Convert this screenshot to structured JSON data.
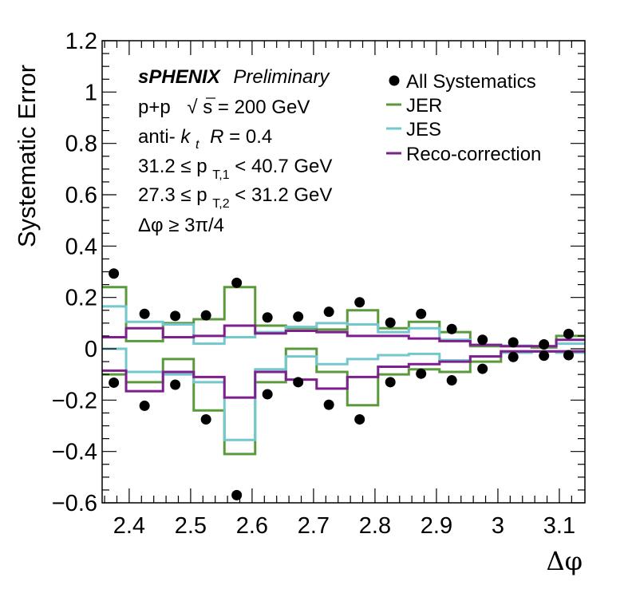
{
  "chart_data": {
    "type": "line",
    "xlabel": "Δφ",
    "ylabel": "Systematic Error",
    "xlim": [
      2.356,
      3.1416
    ],
    "ylim": [
      -0.6,
      1.2
    ],
    "xticks": [
      "2.4",
      "2.5",
      "2.6",
      "2.7",
      "2.8",
      "2.9",
      "3",
      "3.1"
    ],
    "yticks": [
      "1.2",
      "1",
      "0.8",
      "0.6",
      "0.4",
      "0.2",
      "0",
      "−0.2",
      "−0.4",
      "−0.6"
    ],
    "bin_edges": [
      2.356,
      2.395,
      2.455,
      2.505,
      2.555,
      2.605,
      2.655,
      2.705,
      2.755,
      2.805,
      2.855,
      2.905,
      2.955,
      3.005,
      3.055,
      3.095,
      3.1416
    ],
    "annotations": {
      "experiment": "sPHENIX",
      "status": "Preliminary",
      "collision_prefix": "p+p",
      "sqrt_symbol": "√",
      "collision_energy": "s = 200 GeV",
      "jet_algo_prefix": "anti-",
      "jet_algo_k": "k",
      "jet_algo_k_sub": "t",
      "jet_algo_R": "R",
      "jet_algo_R_value": " = 0.4",
      "pt1_pre": "31.2 ≤ p",
      "pt1_sub": "T,1",
      "pt1_post": " < 40.7 GeV",
      "pt2_pre": "27.3 ≤ p",
      "pt2_sub": "T,2",
      "pt2_post": " < 31.2 GeV",
      "dphi_cut": "Δφ  ≥ 3π/4"
    },
    "legend_position": "top-right",
    "series": [
      {
        "name": "All Systematics",
        "kind": "points",
        "color": "#000000",
        "x": [
          2.375,
          2.425,
          2.475,
          2.525,
          2.575,
          2.625,
          2.675,
          2.725,
          2.775,
          2.825,
          2.875,
          2.925,
          2.975,
          3.025,
          3.075,
          3.115
        ],
        "upper": [
          0.293,
          0.136,
          0.128,
          0.13,
          0.257,
          0.122,
          0.125,
          0.144,
          0.181,
          0.102,
          0.136,
          0.077,
          0.035,
          0.025,
          0.017,
          0.058
        ],
        "lower": [
          -0.132,
          -0.222,
          -0.14,
          -0.275,
          -0.57,
          -0.177,
          -0.13,
          -0.218,
          -0.275,
          -0.13,
          -0.097,
          -0.123,
          -0.078,
          -0.032,
          -0.027,
          -0.025
        ]
      },
      {
        "name": "JER",
        "kind": "histogram",
        "color": "#5b9a3c",
        "upper": [
          0.24,
          0.03,
          0.1,
          0.115,
          0.24,
          0.09,
          0.08,
          0.075,
          0.15,
          0.08,
          0.105,
          0.065,
          0.01,
          0.01,
          0.005,
          0.05
        ],
        "lower": [
          -0.1,
          -0.13,
          -0.04,
          -0.24,
          -0.41,
          -0.13,
          0.0,
          -0.09,
          -0.22,
          -0.1,
          -0.08,
          -0.09,
          -0.05,
          -0.01,
          -0.01,
          -0.01
        ]
      },
      {
        "name": "JES",
        "kind": "histogram",
        "color": "#72c8cc",
        "upper": [
          0.165,
          0.105,
          0.095,
          0.02,
          0.045,
          0.065,
          0.085,
          0.1,
          0.095,
          0.065,
          0.08,
          0.035,
          0.015,
          0.012,
          0.01,
          0.02
        ],
        "lower": [
          0.0,
          -0.09,
          -0.1,
          -0.13,
          -0.355,
          -0.08,
          -0.03,
          -0.06,
          -0.04,
          -0.025,
          -0.02,
          -0.045,
          -0.03,
          -0.015,
          -0.01,
          -0.015
        ]
      },
      {
        "name": "Reco-correction",
        "kind": "histogram",
        "color": "#7d1f8e",
        "upper": [
          0.045,
          0.08,
          0.045,
          0.05,
          0.09,
          0.06,
          0.07,
          0.065,
          0.05,
          0.05,
          0.04,
          0.03,
          0.015,
          0.01,
          0.01,
          0.035
        ],
        "lower": [
          -0.085,
          -0.165,
          -0.09,
          -0.11,
          -0.19,
          -0.09,
          -0.12,
          -0.155,
          -0.11,
          -0.07,
          -0.06,
          -0.05,
          -0.03,
          -0.01,
          -0.01,
          -0.01
        ]
      }
    ]
  }
}
